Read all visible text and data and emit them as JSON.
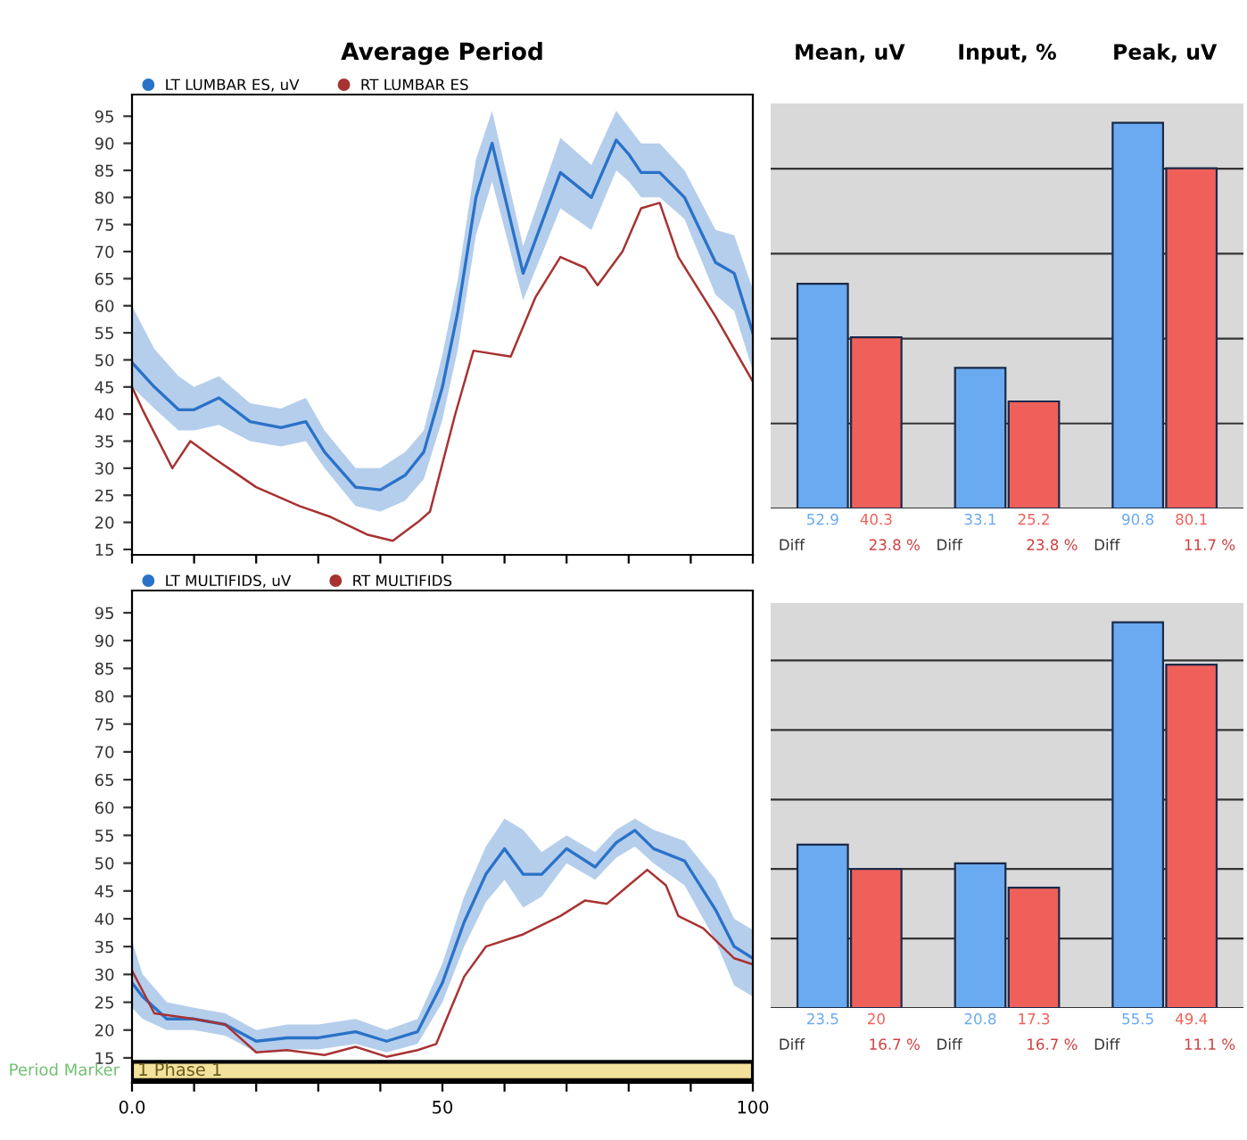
{
  "chart_data": [
    {
      "type": "line",
      "title": "Average Period",
      "xlim": [
        0,
        100
      ],
      "xticks": [
        0,
        10,
        20,
        30,
        40,
        50,
        60,
        70,
        80,
        90,
        100
      ],
      "ylim": [
        14,
        99
      ],
      "yticks": [
        15,
        20,
        25,
        30,
        35,
        40,
        45,
        50,
        55,
        60,
        65,
        70,
        75,
        80,
        85,
        90,
        95
      ],
      "tick_labels": "y",
      "legend": "top left",
      "grid": false,
      "series": [
        {
          "name": "LT LUMBAR ES, uV",
          "color": "#2a72c8",
          "x": [
            0,
            3.6,
            7.5,
            10,
            14,
            19,
            24,
            28,
            31,
            36,
            40,
            44,
            47,
            50,
            52.5,
            55.4,
            58,
            63,
            69,
            74,
            78,
            80,
            82,
            85,
            89,
            94,
            97,
            100
          ],
          "values": [
            49.5,
            45,
            40.8,
            40.8,
            43,
            38.6,
            37.5,
            38.6,
            33,
            26.5,
            26,
            28.7,
            33,
            45,
            59,
            80,
            90,
            66,
            84.6,
            80,
            90.6,
            88,
            84.6,
            84.6,
            80,
            68,
            66,
            55
          ],
          "lower": [
            45,
            41,
            37,
            37,
            38,
            35,
            34,
            35,
            30,
            23,
            22,
            24,
            28,
            39,
            52,
            73,
            83,
            61,
            78,
            74,
            85,
            83,
            80,
            80,
            76,
            62,
            59,
            48
          ],
          "upper": [
            60,
            52,
            47,
            45,
            47,
            42,
            41,
            43,
            37,
            30,
            30,
            33,
            37,
            51,
            65,
            87,
            96,
            71,
            91,
            86,
            96,
            93,
            90,
            90,
            85,
            74,
            73,
            63
          ]
        },
        {
          "name": "RT LUMBAR ES",
          "color": "#a83232",
          "x": [
            0,
            1.7,
            6.5,
            9.4,
            13,
            20,
            27,
            32,
            38,
            42,
            46,
            48,
            52,
            55,
            61,
            65,
            69,
            73,
            75,
            79,
            82,
            85,
            88,
            94,
            100
          ],
          "values": [
            45,
            40.8,
            30,
            35,
            32,
            26.5,
            23,
            21,
            17.7,
            16.6,
            20,
            22,
            39.7,
            51.7,
            50.6,
            61.6,
            69,
            67,
            63.8,
            70,
            78,
            79,
            69,
            58,
            46
          ]
        }
      ]
    },
    {
      "type": "bar",
      "categories": [
        "Mean, uV",
        "Input, %",
        "Peak, uV"
      ],
      "series": [
        {
          "color": "#6aaaf0",
          "values": [
            52.9,
            33.1,
            90.8
          ]
        },
        {
          "color": "#f0605a",
          "values": [
            40.3,
            25.2,
            80.1
          ]
        }
      ],
      "data_labels": true,
      "annotations": [
        "Diff",
        "23.8 %",
        "Diff",
        "23.8 %",
        "Diff",
        "11.7 %"
      ],
      "grid": "y",
      "tick_labels": "x"
    },
    {
      "type": "line",
      "xlim": [
        0,
        100
      ],
      "xticks": [
        {
          "value": 0,
          "label": "0.0"
        },
        {
          "value": 10,
          "label": null
        },
        {
          "value": 20,
          "label": null
        },
        {
          "value": 30,
          "label": null
        },
        {
          "value": 40,
          "label": null
        },
        50,
        {
          "value": 60,
          "label": null
        },
        {
          "value": 70,
          "label": null
        },
        {
          "value": 80,
          "label": null
        },
        {
          "value": 90,
          "label": null
        },
        100
      ],
      "ylim": [
        10.5,
        99
      ],
      "yticks": [
        15,
        20,
        25,
        30,
        35,
        40,
        45,
        50,
        55,
        60,
        65,
        70,
        75,
        80,
        85,
        90,
        95
      ],
      "legend": "top left",
      "grid": false,
      "annotations": [
        "Period Marker"
      ],
      "bands": [
        {
          "axis": "y",
          "from": 11,
          "to": 14.3,
          "label": "1 Phase 1",
          "color": "#f3e29b"
        }
      ],
      "series": [
        {
          "name": "LT MULTIFIDS, uV",
          "color": "#2a72c8",
          "x": [
            0,
            1.7,
            5.6,
            10,
            15,
            20,
            25,
            30,
            36,
            41,
            46,
            50,
            53.5,
            57,
            60,
            63,
            66,
            70,
            74.6,
            78,
            81,
            84,
            89,
            94,
            97,
            100
          ],
          "values": [
            28.5,
            26,
            22,
            22,
            21,
            18,
            18.6,
            18.6,
            19.7,
            18,
            19.7,
            28.5,
            39.4,
            48,
            52.6,
            48,
            48,
            52.6,
            49.3,
            53.7,
            55.9,
            52.6,
            50.4,
            41.6,
            35,
            32.9
          ],
          "lower": [
            24,
            22,
            20,
            20,
            19,
            16,
            16.5,
            16.5,
            17.5,
            16,
            17.5,
            25,
            35,
            43,
            47,
            42,
            44,
            50,
            47,
            51,
            53,
            50,
            46,
            36,
            28,
            26
          ],
          "upper": [
            36,
            30,
            25,
            24,
            23,
            20,
            21,
            21,
            22,
            20,
            22,
            32,
            44,
            53,
            58,
            56,
            52,
            55,
            52,
            56,
            58,
            56,
            54,
            47,
            40,
            38
          ]
        },
        {
          "name": "RT MULTIFIDS",
          "color": "#a83232",
          "x": [
            0,
            3.6,
            10,
            15,
            20,
            25,
            31,
            36,
            41,
            46,
            49,
            53.5,
            57,
            63,
            69,
            73,
            76.5,
            80,
            83,
            86,
            88,
            92,
            97,
            100
          ],
          "values": [
            30.7,
            23,
            22,
            21,
            16,
            16.4,
            15.5,
            17,
            15.2,
            16.4,
            17.5,
            29.6,
            35,
            37.2,
            40.5,
            43.3,
            42.7,
            46,
            48.8,
            46,
            40.5,
            38.3,
            32.9,
            31.8
          ]
        }
      ]
    },
    {
      "type": "bar",
      "categories": [
        null,
        null,
        null
      ],
      "series": [
        {
          "color": "#6aaaf0",
          "values": [
            23.5,
            20.8,
            55.5
          ]
        },
        {
          "color": "#f0605a",
          "values": [
            20,
            17.3,
            49.4
          ]
        }
      ],
      "data_labels": true,
      "annotations": [
        "Diff",
        "16.7 %",
        "Diff",
        "16.7 %",
        "Diff",
        "11.1 %"
      ],
      "grid": "y",
      "tick_labels": false
    }
  ]
}
